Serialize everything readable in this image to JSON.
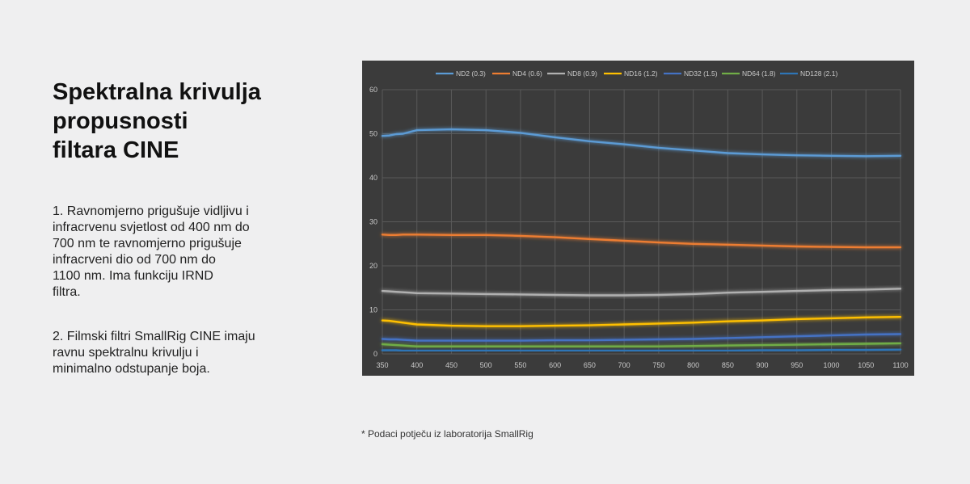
{
  "heading": {
    "lines": [
      "Spektralna krivulja",
      "propusnosti",
      "filtara CINE"
    ]
  },
  "paragraphs": {
    "p1_lines": [
      "1. Ravnomjerno prigušuje vidljivu i",
      "infracrvenu svjetlost od 400 nm do",
      "700 nm te ravnomjerno prigušuje",
      "infracrveni dio od 700 nm do",
      "1100 nm. Ima funkciju IRND",
      "filtra."
    ],
    "p2_lines": [
      "2. Filmski filtri SmallRig CINE imaju",
      "ravnu spektralnu krivulju i",
      "minimalno odstupanje boja."
    ]
  },
  "footnote": "* Podaci potječu iz laboratorija SmallRig",
  "chart_data": {
    "type": "line",
    "title": "",
    "xlabel": "",
    "ylabel": "",
    "xlim": [
      350,
      1100
    ],
    "ylim": [
      0,
      60
    ],
    "x_ticks": [
      350,
      400,
      450,
      500,
      550,
      600,
      650,
      700,
      750,
      800,
      850,
      900,
      950,
      1000,
      1050,
      1100
    ],
    "y_ticks": [
      0,
      10,
      20,
      30,
      40,
      50,
      60
    ],
    "grid": true,
    "legend_position": "top",
    "background": "#3b3b3b",
    "x": [
      350,
      360,
      370,
      380,
      390,
      400,
      450,
      500,
      550,
      600,
      650,
      700,
      750,
      800,
      850,
      900,
      950,
      1000,
      1050,
      1100
    ],
    "series": [
      {
        "name": "ND2 (0.3)",
        "color": "#5b9bd5",
        "values": [
          49.5,
          49.6,
          49.9,
          50.0,
          50.4,
          50.8,
          51.0,
          50.8,
          50.2,
          49.2,
          48.3,
          47.6,
          46.8,
          46.2,
          45.6,
          45.3,
          45.1,
          45.0,
          44.9,
          45.0
        ]
      },
      {
        "name": "ND4 (0.6)",
        "color": "#ed7d31",
        "values": [
          27.1,
          27.0,
          27.0,
          27.1,
          27.1,
          27.1,
          27.0,
          27.0,
          26.8,
          26.5,
          26.1,
          25.7,
          25.3,
          25.0,
          24.8,
          24.6,
          24.4,
          24.3,
          24.2,
          24.2
        ]
      },
      {
        "name": "ND8 (0.9)",
        "color": "#b0b0b0",
        "values": [
          14.3,
          14.2,
          14.1,
          14.0,
          13.9,
          13.8,
          13.7,
          13.6,
          13.5,
          13.4,
          13.3,
          13.3,
          13.4,
          13.6,
          13.9,
          14.1,
          14.3,
          14.5,
          14.6,
          14.8
        ]
      },
      {
        "name": "ND16 (1.2)",
        "color": "#ffc000",
        "values": [
          7.6,
          7.5,
          7.3,
          7.1,
          6.9,
          6.7,
          6.4,
          6.3,
          6.3,
          6.4,
          6.5,
          6.7,
          6.9,
          7.1,
          7.4,
          7.6,
          7.9,
          8.1,
          8.3,
          8.4
        ]
      },
      {
        "name": "ND32 (1.5)",
        "color": "#4472c4",
        "values": [
          3.4,
          3.3,
          3.3,
          3.2,
          3.1,
          3.0,
          3.0,
          3.0,
          3.0,
          3.1,
          3.1,
          3.2,
          3.3,
          3.4,
          3.6,
          3.8,
          4.0,
          4.2,
          4.4,
          4.5
        ]
      },
      {
        "name": "ND64 (1.8)",
        "color": "#70ad47",
        "values": [
          2.2,
          2.1,
          2.0,
          1.9,
          1.8,
          1.7,
          1.7,
          1.7,
          1.7,
          1.7,
          1.7,
          1.7,
          1.7,
          1.8,
          1.9,
          2.0,
          2.1,
          2.2,
          2.3,
          2.4
        ]
      },
      {
        "name": "ND128 (2.1)",
        "color": "#2e75b6",
        "values": [
          0.8,
          0.8,
          0.8,
          0.7,
          0.7,
          0.7,
          0.7,
          0.7,
          0.7,
          0.7,
          0.7,
          0.7,
          0.7,
          0.7,
          0.7,
          0.8,
          0.8,
          0.9,
          0.9,
          1.0
        ]
      }
    ]
  }
}
